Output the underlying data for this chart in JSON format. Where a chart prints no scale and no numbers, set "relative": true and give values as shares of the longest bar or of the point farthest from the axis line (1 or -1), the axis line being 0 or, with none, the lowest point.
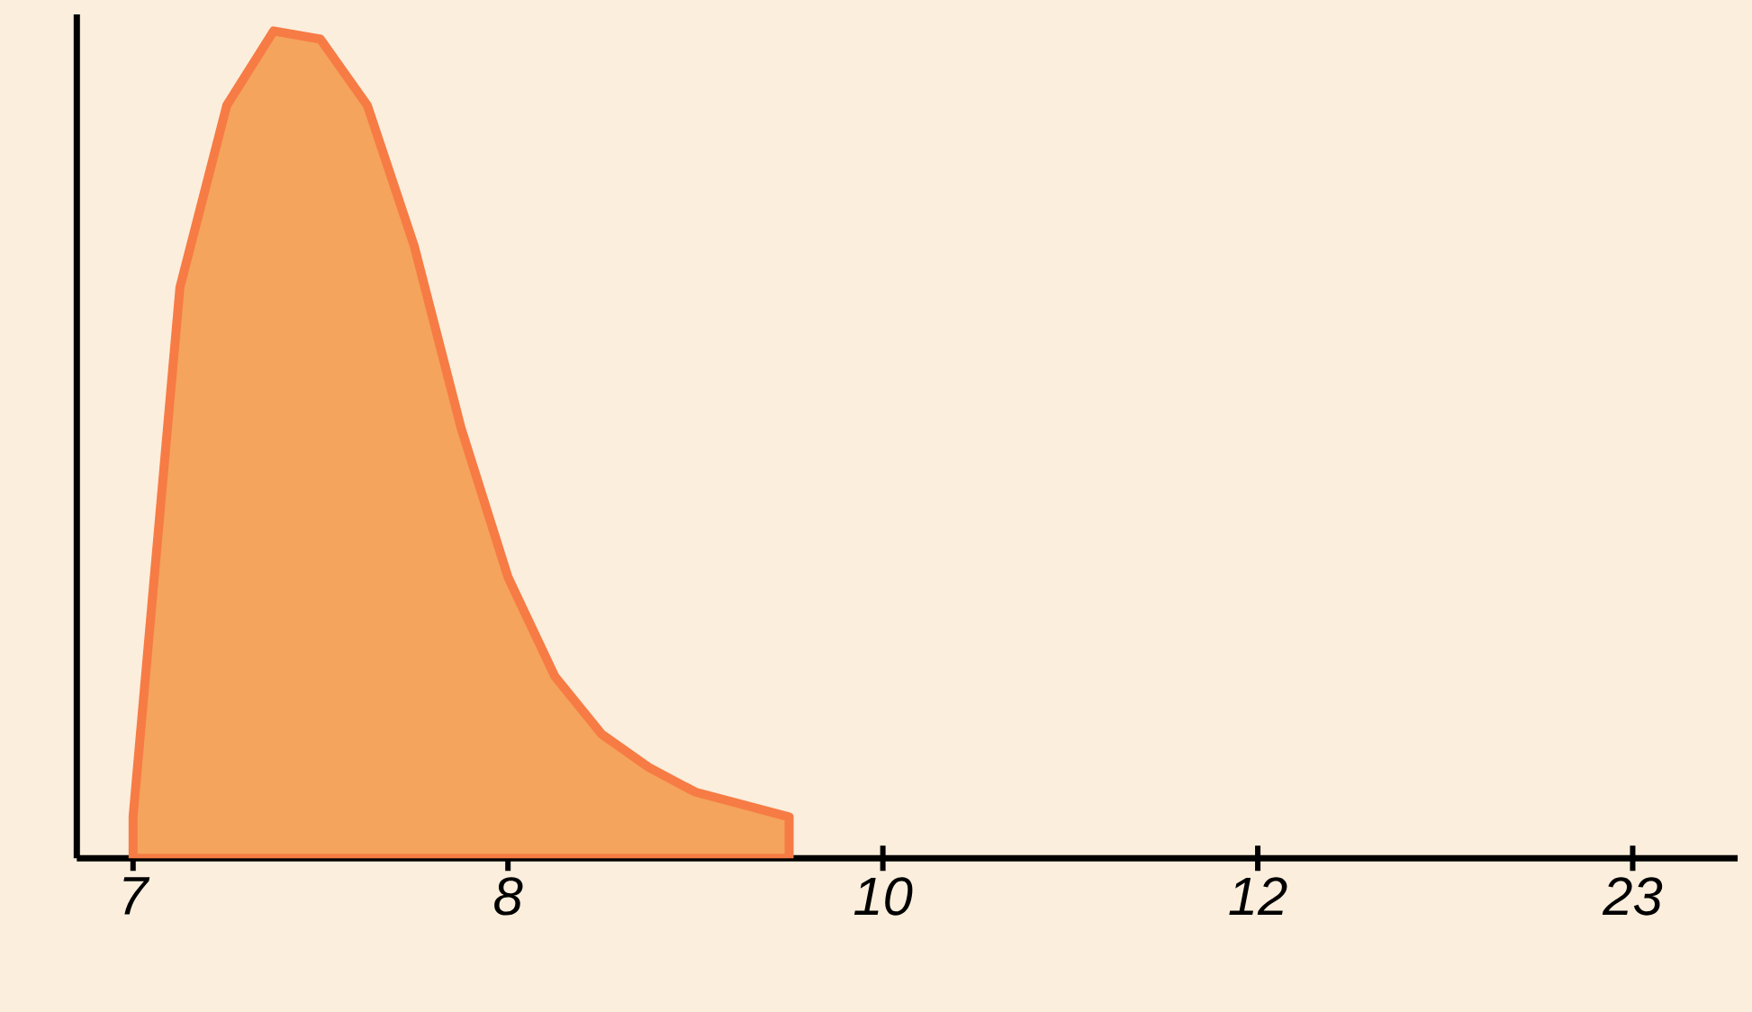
{
  "chart_data": {
    "type": "area",
    "relative": true,
    "categories": [
      "7",
      null,
      null,
      null,
      null,
      null,
      null,
      null,
      "8",
      null,
      null,
      null,
      null,
      null,
      null,
      null,
      "10",
      null,
      null,
      null,
      null,
      null,
      null,
      null,
      "12",
      null,
      null,
      null,
      null,
      null,
      null,
      null,
      "23"
    ],
    "series": [
      {
        "color": "#f4a45c",
        "values": [
          0.05,
          0.69,
          0.91,
          1,
          0.99,
          0.91,
          0.74,
          0.52,
          0.34,
          0.22,
          0.15,
          0.11,
          0.08,
          0.065,
          0.05,
          null,
          null,
          null,
          null,
          null,
          null,
          null,
          null,
          null,
          null,
          null,
          null,
          null,
          null,
          null,
          null,
          null,
          null
        ]
      }
    ]
  }
}
